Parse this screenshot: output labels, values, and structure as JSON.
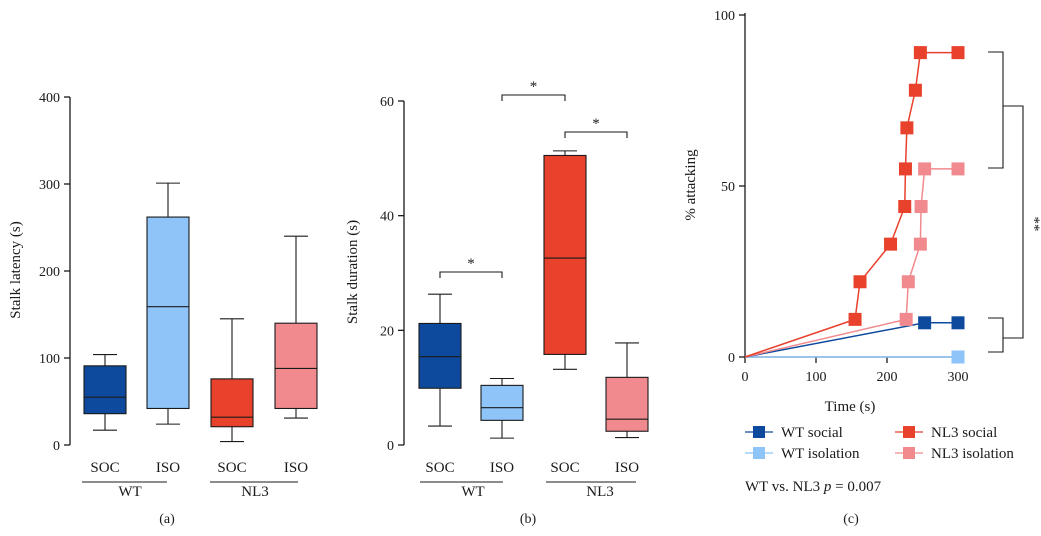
{
  "colors": {
    "wt_social": "#0d4a9e",
    "wt_isolation": "#8ec4f7",
    "nl3_social": "#e8412c",
    "nl3_isolation": "#f08a8e",
    "ink": "#1a1a1a"
  },
  "chart_data": [
    {
      "type": "box",
      "panel_label": "(a)",
      "ylabel": "Stalk latency (s)",
      "ylim": [
        0,
        400
      ],
      "yticks": [
        "0",
        "100",
        "200",
        "300",
        "400"
      ],
      "categories": [
        "SOC",
        "ISO",
        "SOC",
        "ISO"
      ],
      "group_labels": [
        "WT",
        "NL3"
      ],
      "boxes": [
        {
          "min": 17,
          "q1": 36,
          "median": 55,
          "q3": 91,
          "max": 104
        },
        {
          "min": 24,
          "q1": 42,
          "median": 159,
          "q3": 262,
          "max": 301
        },
        {
          "min": 4,
          "q1": 21,
          "median": 32,
          "q3": 76,
          "max": 145
        },
        {
          "min": 31,
          "q1": 42,
          "median": 88,
          "q3": 140,
          "max": 240
        }
      ]
    },
    {
      "type": "box",
      "panel_label": "(b)",
      "ylabel": "Stalk duration (s)",
      "ylim": [
        0,
        60
      ],
      "yticks": [
        "0",
        "20",
        "40",
        "60"
      ],
      "categories": [
        "SOC",
        "ISO",
        "SOC",
        "ISO"
      ],
      "group_labels": [
        "WT",
        "NL3"
      ],
      "boxes": [
        {
          "min": 3.3,
          "q1": 9.9,
          "median": 15.4,
          "q3": 21.2,
          "max": 26.3
        },
        {
          "min": 1.2,
          "q1": 4.3,
          "median": 6.5,
          "q3": 10.4,
          "max": 11.6
        },
        {
          "min": 13.2,
          "q1": 15.8,
          "median": 32.6,
          "q3": 50.5,
          "max": 51.3
        },
        {
          "min": 1.3,
          "q1": 2.4,
          "median": 4.5,
          "q3": 11.8,
          "max": 17.8
        }
      ],
      "significance": [
        {
          "from": 0,
          "to": 1,
          "label": "*"
        },
        {
          "from": 2,
          "to": 3,
          "label": "*"
        },
        {
          "from": 1,
          "to": 2,
          "label": "*"
        }
      ]
    },
    {
      "type": "line",
      "panel_label": "(c)",
      "xlabel": "Time (s)",
      "ylabel": "% attacking",
      "xlim": [
        0,
        300
      ],
      "ylim": [
        0,
        100
      ],
      "xticks": [
        "0",
        "100",
        "200",
        "300"
      ],
      "yticks": [
        "0",
        "50",
        "100"
      ],
      "series": [
        {
          "name": "WT social",
          "x": [
            0,
            253,
            300
          ],
          "y": [
            0,
            10,
            10
          ]
        },
        {
          "name": "WT isolation",
          "x": [
            0,
            300
          ],
          "y": [
            0,
            0
          ]
        },
        {
          "name": "NL3 social",
          "x": [
            0,
            155,
            162,
            205,
            225,
            226,
            228,
            240,
            247,
            300
          ],
          "y": [
            0,
            11,
            22,
            33,
            44,
            55,
            67,
            78,
            89,
            89
          ]
        },
        {
          "name": "NL3 isolation",
          "x": [
            0,
            227,
            230,
            247,
            248,
            253,
            300
          ],
          "y": [
            0,
            11,
            22,
            33,
            44,
            55,
            55
          ]
        }
      ],
      "annotation": {
        "prefix": "WT vs. NL3 ",
        "p_symbol": "p",
        "p_value": " = 0.007"
      },
      "significance_label": "**"
    }
  ]
}
